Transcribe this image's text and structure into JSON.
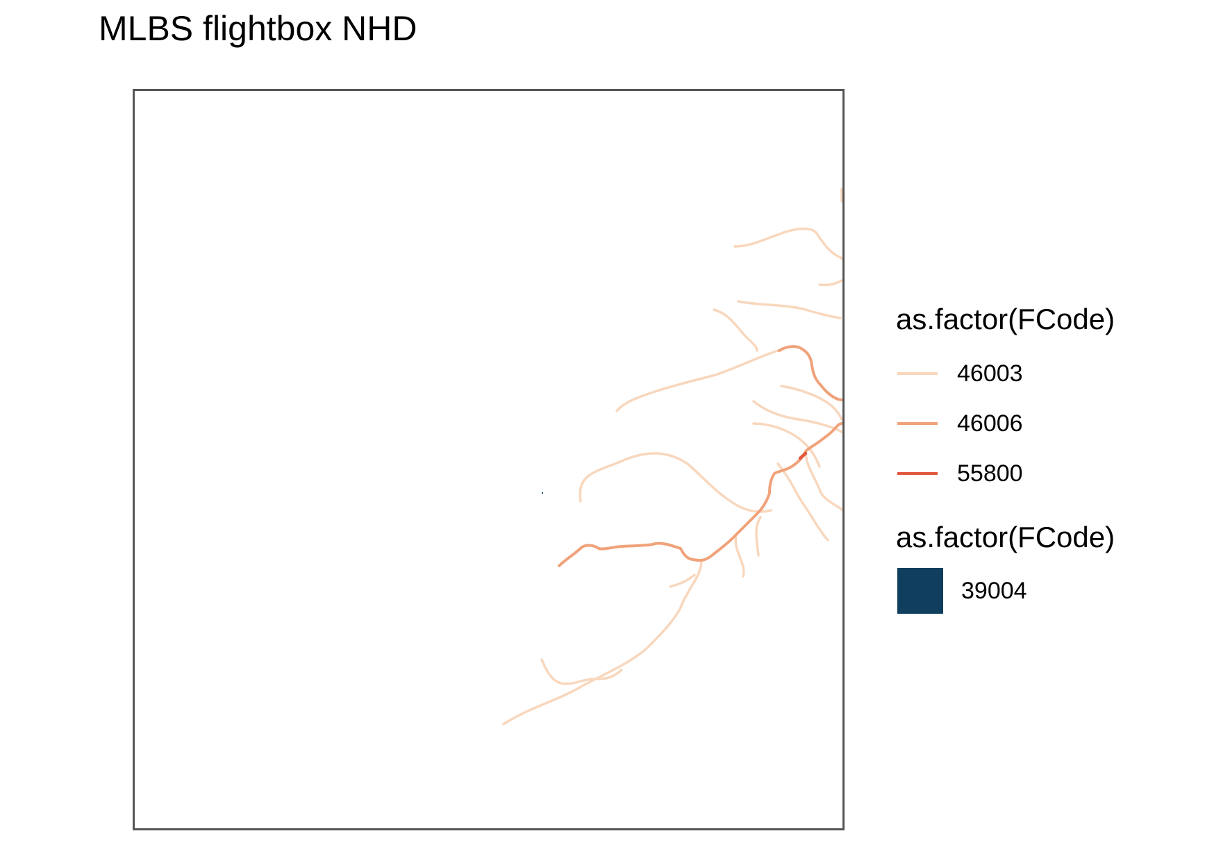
{
  "title": "MLBS flightbox NHD",
  "legend_lines": {
    "title": "as.factor(FCode)",
    "items": [
      {
        "label": "46003",
        "color": "#f8d7bd"
      },
      {
        "label": "46006",
        "color": "#f0a27a"
      },
      {
        "label": "55800",
        "color": "#e2573f"
      }
    ]
  },
  "legend_fill": {
    "title": "as.factor(FCode)",
    "items": [
      {
        "label": "39004",
        "color": "#0f3e5e"
      }
    ]
  },
  "colors": {
    "frame": "#555555",
    "background": "#ffffff"
  }
}
